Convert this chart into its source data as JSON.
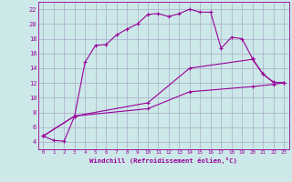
{
  "xlabel": "Windchill (Refroidissement éolien,°C)",
  "background_color": "#cce8e8",
  "grid_color": "#aaaacc",
  "line_color": "#990099",
  "xlim": [
    -0.5,
    23.5
  ],
  "ylim": [
    3.0,
    23.0
  ],
  "xticks": [
    0,
    1,
    2,
    3,
    4,
    5,
    6,
    7,
    8,
    9,
    10,
    11,
    12,
    13,
    14,
    15,
    16,
    17,
    18,
    19,
    20,
    21,
    22,
    23
  ],
  "yticks": [
    4,
    6,
    8,
    10,
    12,
    14,
    16,
    18,
    20,
    22
  ],
  "line1_x": [
    0,
    1,
    2,
    3,
    4,
    5,
    6,
    7,
    8,
    9,
    10,
    11,
    12,
    13,
    14,
    15,
    16,
    17,
    18,
    19,
    20,
    21,
    22,
    23
  ],
  "line1_y": [
    4.8,
    4.2,
    4.1,
    7.5,
    14.8,
    17.1,
    17.2,
    18.5,
    19.3,
    20.0,
    21.3,
    21.4,
    21.0,
    21.4,
    22.0,
    21.6,
    21.6,
    16.7,
    18.2,
    18.0,
    15.3,
    13.2,
    12.1,
    12.0
  ],
  "line2_x": [
    0,
    3,
    10,
    14,
    20,
    21,
    22,
    23
  ],
  "line2_y": [
    4.8,
    7.5,
    9.3,
    14.0,
    15.2,
    13.2,
    12.1,
    12.0
  ],
  "line3_x": [
    0,
    3,
    10,
    14,
    20,
    22,
    23
  ],
  "line3_y": [
    4.8,
    7.5,
    8.5,
    10.8,
    11.5,
    11.8,
    12.0
  ]
}
